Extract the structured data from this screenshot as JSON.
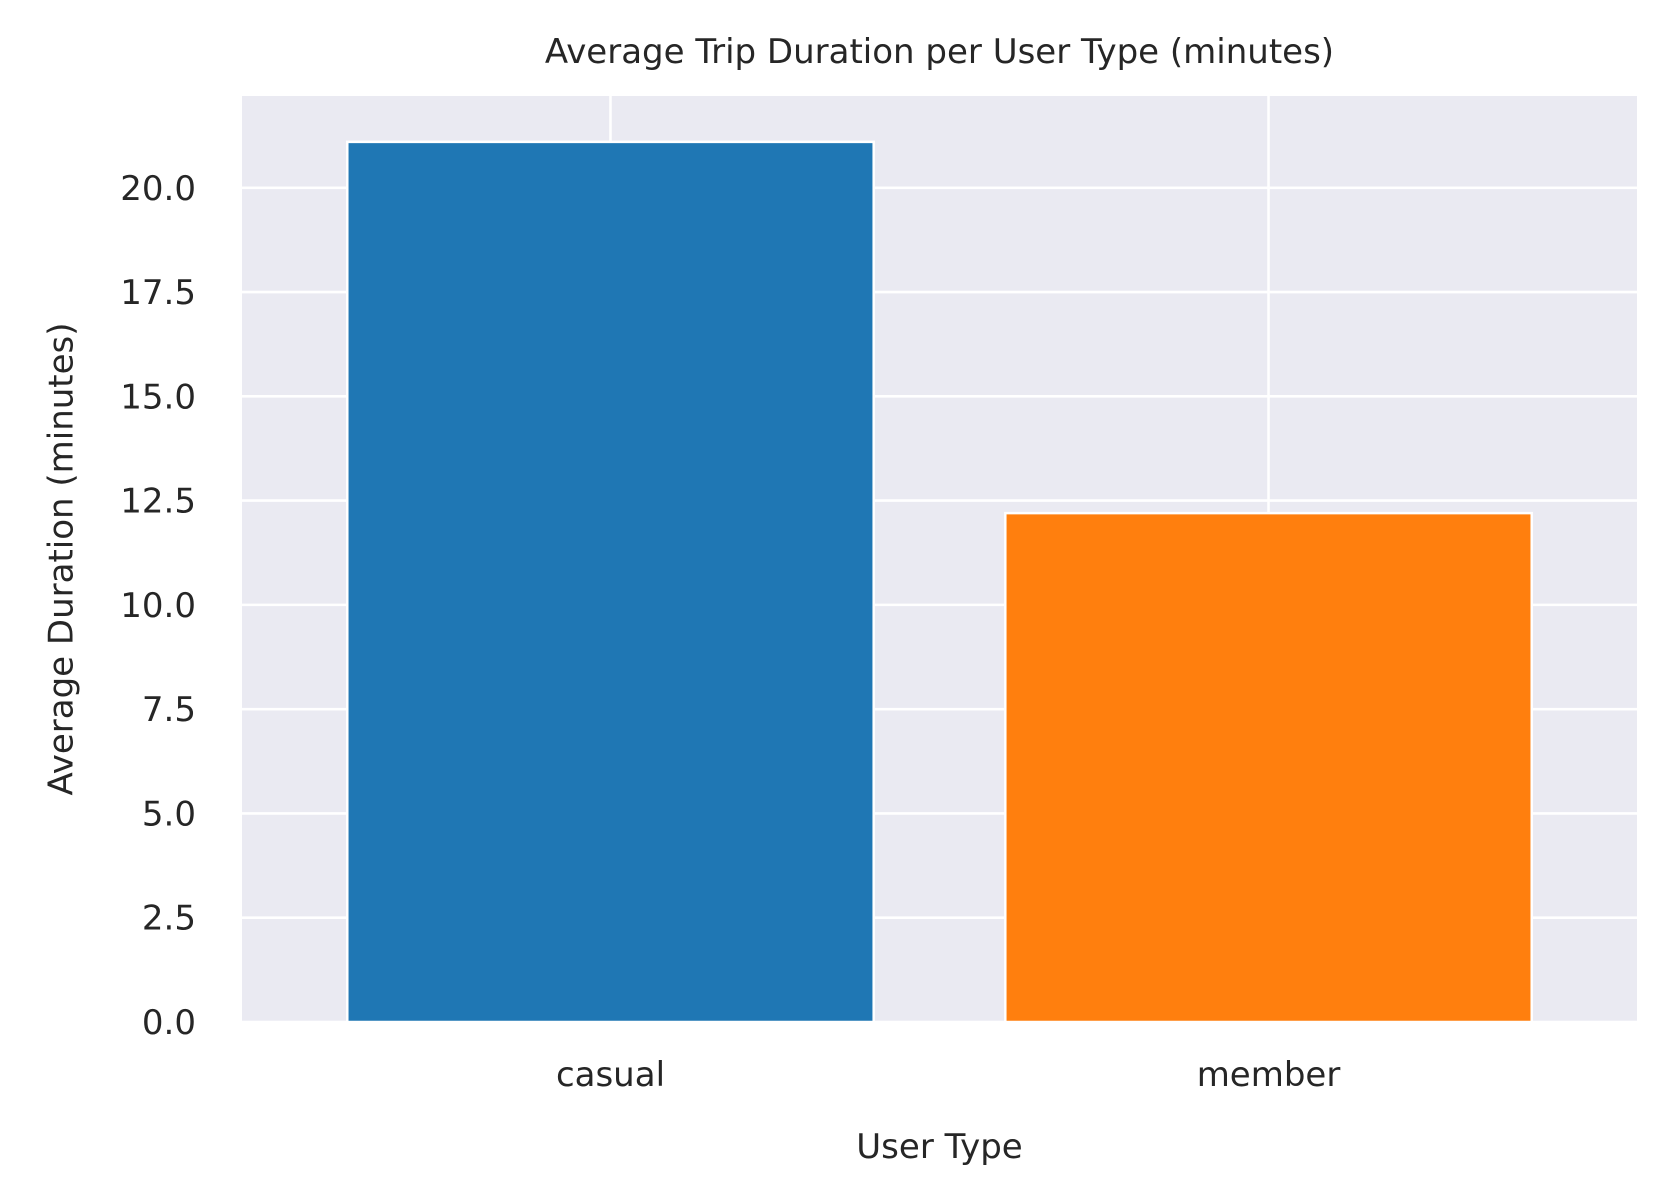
{
  "chart_data": {
    "type": "bar",
    "title": "Average Trip Duration per User Type (minutes)",
    "xlabel": "User Type",
    "ylabel": "Average Duration (minutes)",
    "categories": [
      "casual",
      "member"
    ],
    "values": [
      21.1,
      12.2
    ],
    "colors": [
      "#1f77b4",
      "#ff7f0e"
    ],
    "ylim": [
      0,
      22.2
    ],
    "yticks": [
      0.0,
      2.5,
      5.0,
      7.5,
      10.0,
      12.5,
      15.0,
      17.5,
      20.0
    ],
    "ytick_labels": [
      "0.0",
      "2.5",
      "5.0",
      "7.5",
      "10.0",
      "12.5",
      "15.0",
      "17.5",
      "20.0"
    ],
    "grid": true,
    "background": "#eaeaf2",
    "grid_color": "#ffffff"
  }
}
